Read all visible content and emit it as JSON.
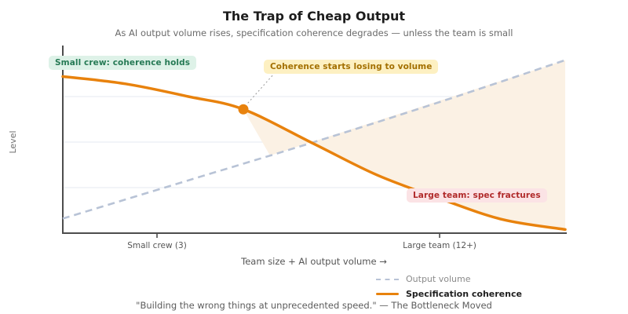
{
  "header": {
    "title": "The Trap of Cheap Output",
    "subtitle": "As AI output volume rises, specification coherence degrades — unless the team is small"
  },
  "chart_data": {
    "type": "line",
    "title": "The Trap of Cheap Output",
    "xlabel": "Team size + AI output volume →",
    "ylabel": "Level",
    "x_domain": [
      0,
      16
    ],
    "y_domain": [
      0,
      1
    ],
    "grid": true,
    "grid_levels": [
      0.25,
      0.5,
      0.75
    ],
    "legend_position": "bottom-right",
    "x_ticks": [
      {
        "x": 3,
        "label": "Small crew (3)"
      },
      {
        "x": 12,
        "label": "Large team (12+)"
      }
    ],
    "series": [
      {
        "name": "Output volume",
        "style": "dashed",
        "color": "#b8c3d6",
        "x": [
          0,
          4,
          8,
          12,
          16
        ],
        "y": [
          0.08,
          0.29,
          0.5,
          0.72,
          0.95
        ]
      },
      {
        "name": "Specification coherence",
        "style": "solid",
        "color": "#e8820d",
        "x": [
          0,
          2,
          4,
          5.75,
          8,
          10,
          12,
          14,
          16
        ],
        "y": [
          0.86,
          0.82,
          0.75,
          0.68,
          0.49,
          0.32,
          0.19,
          0.075,
          0.02
        ]
      }
    ],
    "marker": {
      "x": 5.75,
      "y": 0.68,
      "color": "#e8820d"
    },
    "fill_between_from_x": 5.75,
    "fill_edge_x": 6.6,
    "fill_color": "#fbf1e4",
    "annotations": [
      {
        "text": "Small crew: coherence holds",
        "color": "#267a55",
        "bg": "#def2e8"
      },
      {
        "text": "Coherence starts losing to volume",
        "color": "#a36f00",
        "bg": "#fdf0c2"
      },
      {
        "text": "Large team: spec fractures",
        "color": "#b02a2a",
        "bg": "#fbe3e5"
      }
    ]
  },
  "caption": {
    "text": "\"Building the wrong things at unprecedented speed.\" — The Bottleneck Moved"
  }
}
